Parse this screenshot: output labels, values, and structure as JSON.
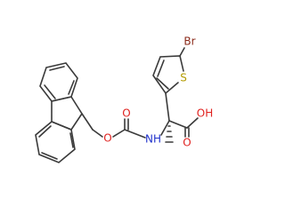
{
  "atoms": [
    {
      "label": "Br"
    },
    {
      "label": "S"
    },
    {
      "label": "O"
    },
    {
      "label": "O"
    },
    {
      "label": "NH"
    },
    {
      "label": "OH"
    },
    {
      "label": "O"
    }
  ]
}
